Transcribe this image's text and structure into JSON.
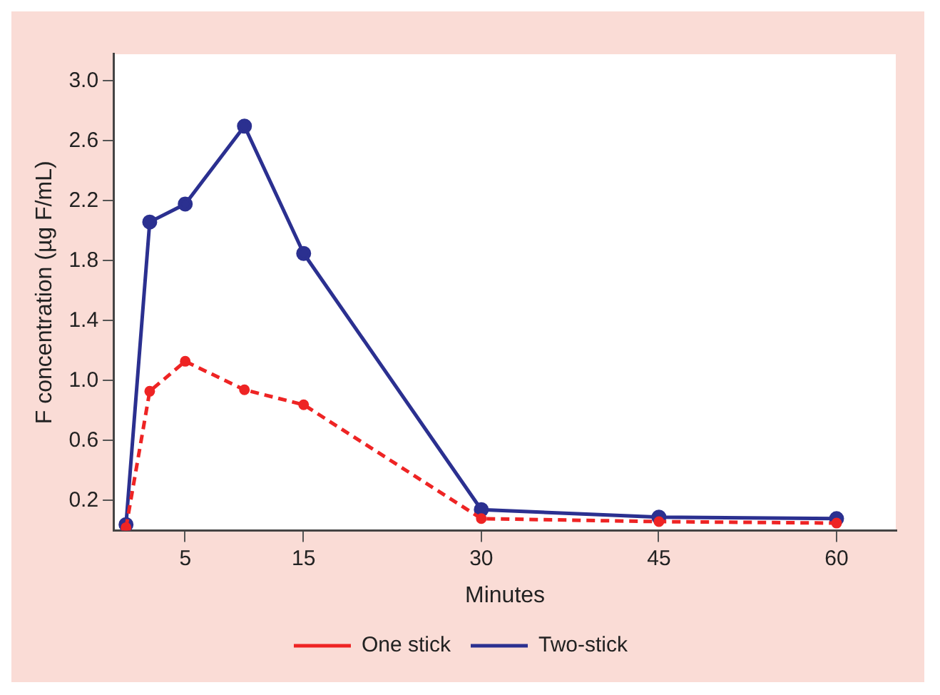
{
  "chart_data": {
    "type": "line",
    "xlabel": "Minutes",
    "ylabel": "F concentration (µg F/mL)",
    "x": [
      0,
      2,
      5,
      10,
      15,
      30,
      45,
      60
    ],
    "series": [
      {
        "name": "One stick",
        "color": "#ee2424",
        "line_style": "dashed",
        "values": [
          0.02,
          0.93,
          1.13,
          0.94,
          0.84,
          0.08,
          0.06,
          0.05
        ]
      },
      {
        "name": "Two-stick",
        "color": "#2b3090",
        "line_style": "solid",
        "values": [
          0.04,
          2.06,
          2.18,
          2.7,
          1.85,
          0.14,
          0.09,
          0.08
        ]
      }
    ],
    "xlim": [
      -1,
      65
    ],
    "xticks": [
      5,
      15,
      30,
      45,
      60
    ],
    "ylim": [
      0,
      3.18
    ],
    "yticks": [
      0.2,
      0.6,
      {
        "value": 1,
        "label": "1.0"
      },
      1.4,
      1.8,
      2.2,
      2.6,
      {
        "value": 3,
        "label": "3.0"
      }
    ],
    "grid": false,
    "legend": "bottom",
    "marker": "circle"
  }
}
